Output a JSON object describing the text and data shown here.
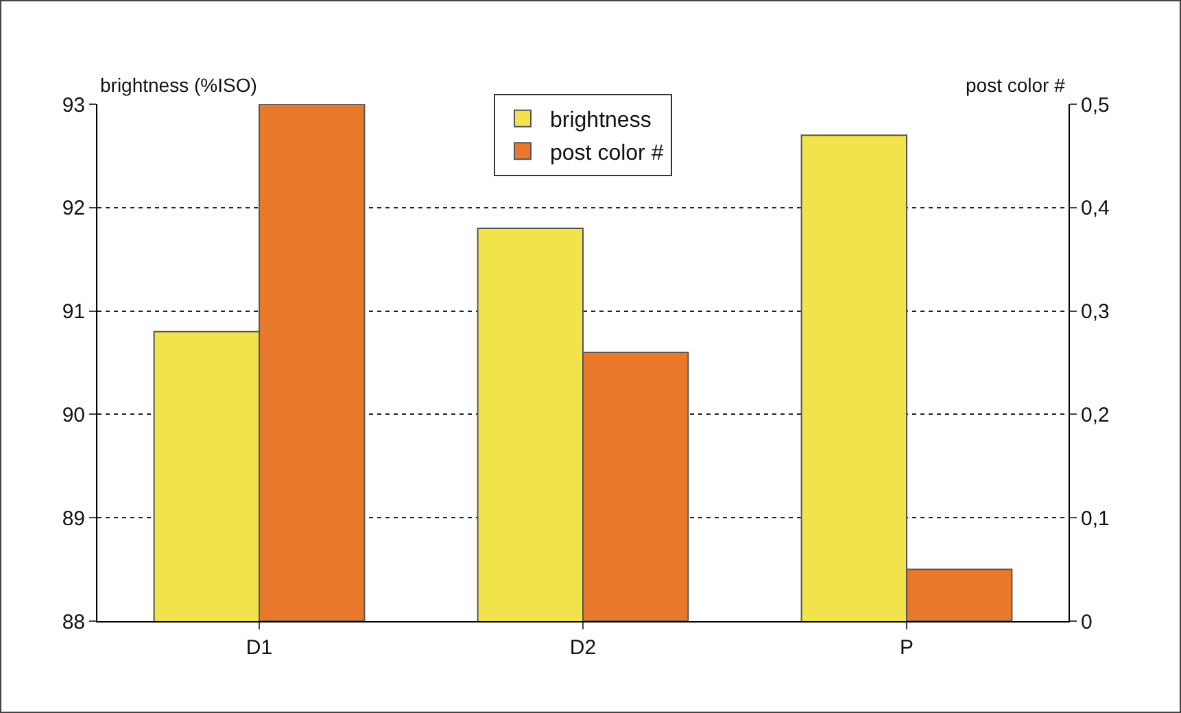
{
  "chart_data": {
    "type": "bar",
    "categories": [
      "D1",
      "D2",
      "P"
    ],
    "ylabel": "brightness (%ISO)",
    "y2label": "post color #",
    "series": [
      {
        "name": "brightness",
        "color": "#f2e24c",
        "values": [
          90.8,
          91.8,
          92.7
        ]
      },
      {
        "name": "post color #",
        "color": "#e8792a",
        "values": [
          0.5,
          0.26,
          0.05
        ],
        "axis": "y2"
      }
    ],
    "ylim": [
      88,
      93
    ],
    "yticks": [
      88,
      89,
      90,
      91,
      92,
      93
    ],
    "y2lim": [
      0,
      0.5
    ],
    "y2ticks": [
      0,
      {
        "value": 0.1,
        "label": "0,1"
      },
      {
        "value": 0.2,
        "label": "0,2"
      },
      {
        "value": 0.3,
        "label": "0,3"
      },
      {
        "value": 0.4,
        "label": "0,4"
      },
      {
        "value": 0.5,
        "label": "0,5"
      }
    ],
    "grid": "y",
    "legend": "top"
  }
}
